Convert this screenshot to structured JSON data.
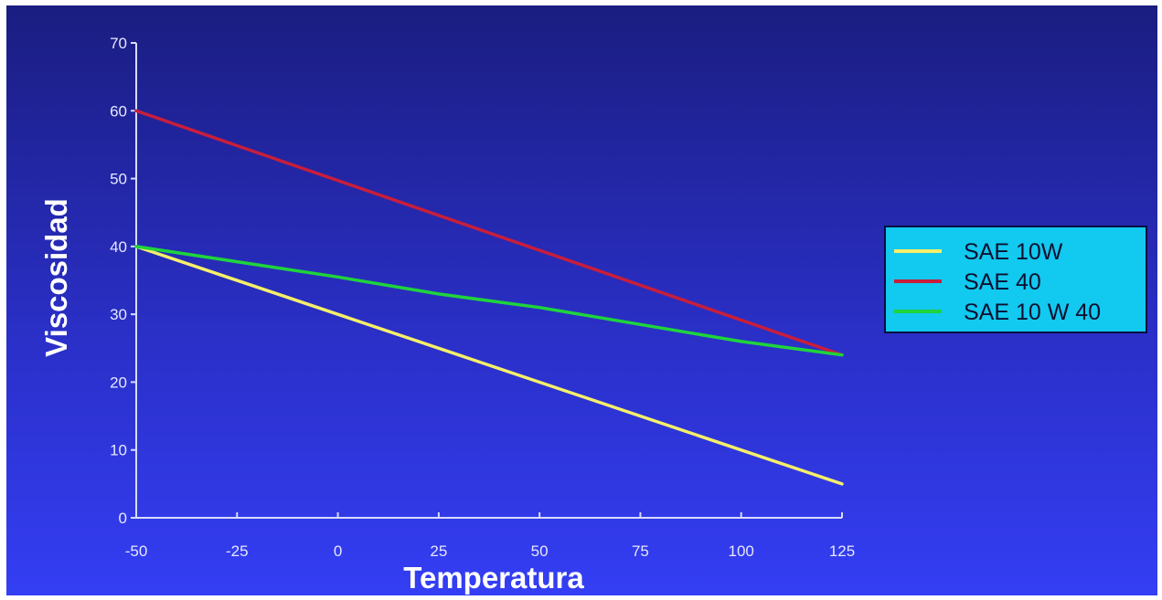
{
  "chart_data": {
    "type": "line",
    "title": "",
    "xlabel": "Temperatura",
    "ylabel": "Viscosidad",
    "xlim": [
      -50,
      125
    ],
    "ylim": [
      0,
      70
    ],
    "x_ticks": [
      -50,
      -25,
      0,
      25,
      50,
      75,
      100,
      125
    ],
    "y_ticks": [
      0,
      10,
      20,
      30,
      40,
      50,
      60,
      70
    ],
    "grid": false,
    "legend_position": "right",
    "series": [
      {
        "name": "SAE 10W",
        "color": "#f5ef6a",
        "x": [
          -50,
          125
        ],
        "y": [
          40,
          5
        ]
      },
      {
        "name": "SAE 40",
        "color": "#c81e3c",
        "x": [
          -50,
          125
        ],
        "y": [
          60,
          24
        ]
      },
      {
        "name": "SAE 10 W 40",
        "color": "#1fd43c",
        "x": [
          -50,
          0,
          25,
          50,
          75,
          100,
          125
        ],
        "y": [
          40,
          35.5,
          33,
          31,
          28.5,
          26,
          24
        ]
      }
    ]
  },
  "colors": {
    "background_top": "#1a1d80",
    "background_bottom": "#343ef4",
    "legend_background": "#12c9ef"
  }
}
